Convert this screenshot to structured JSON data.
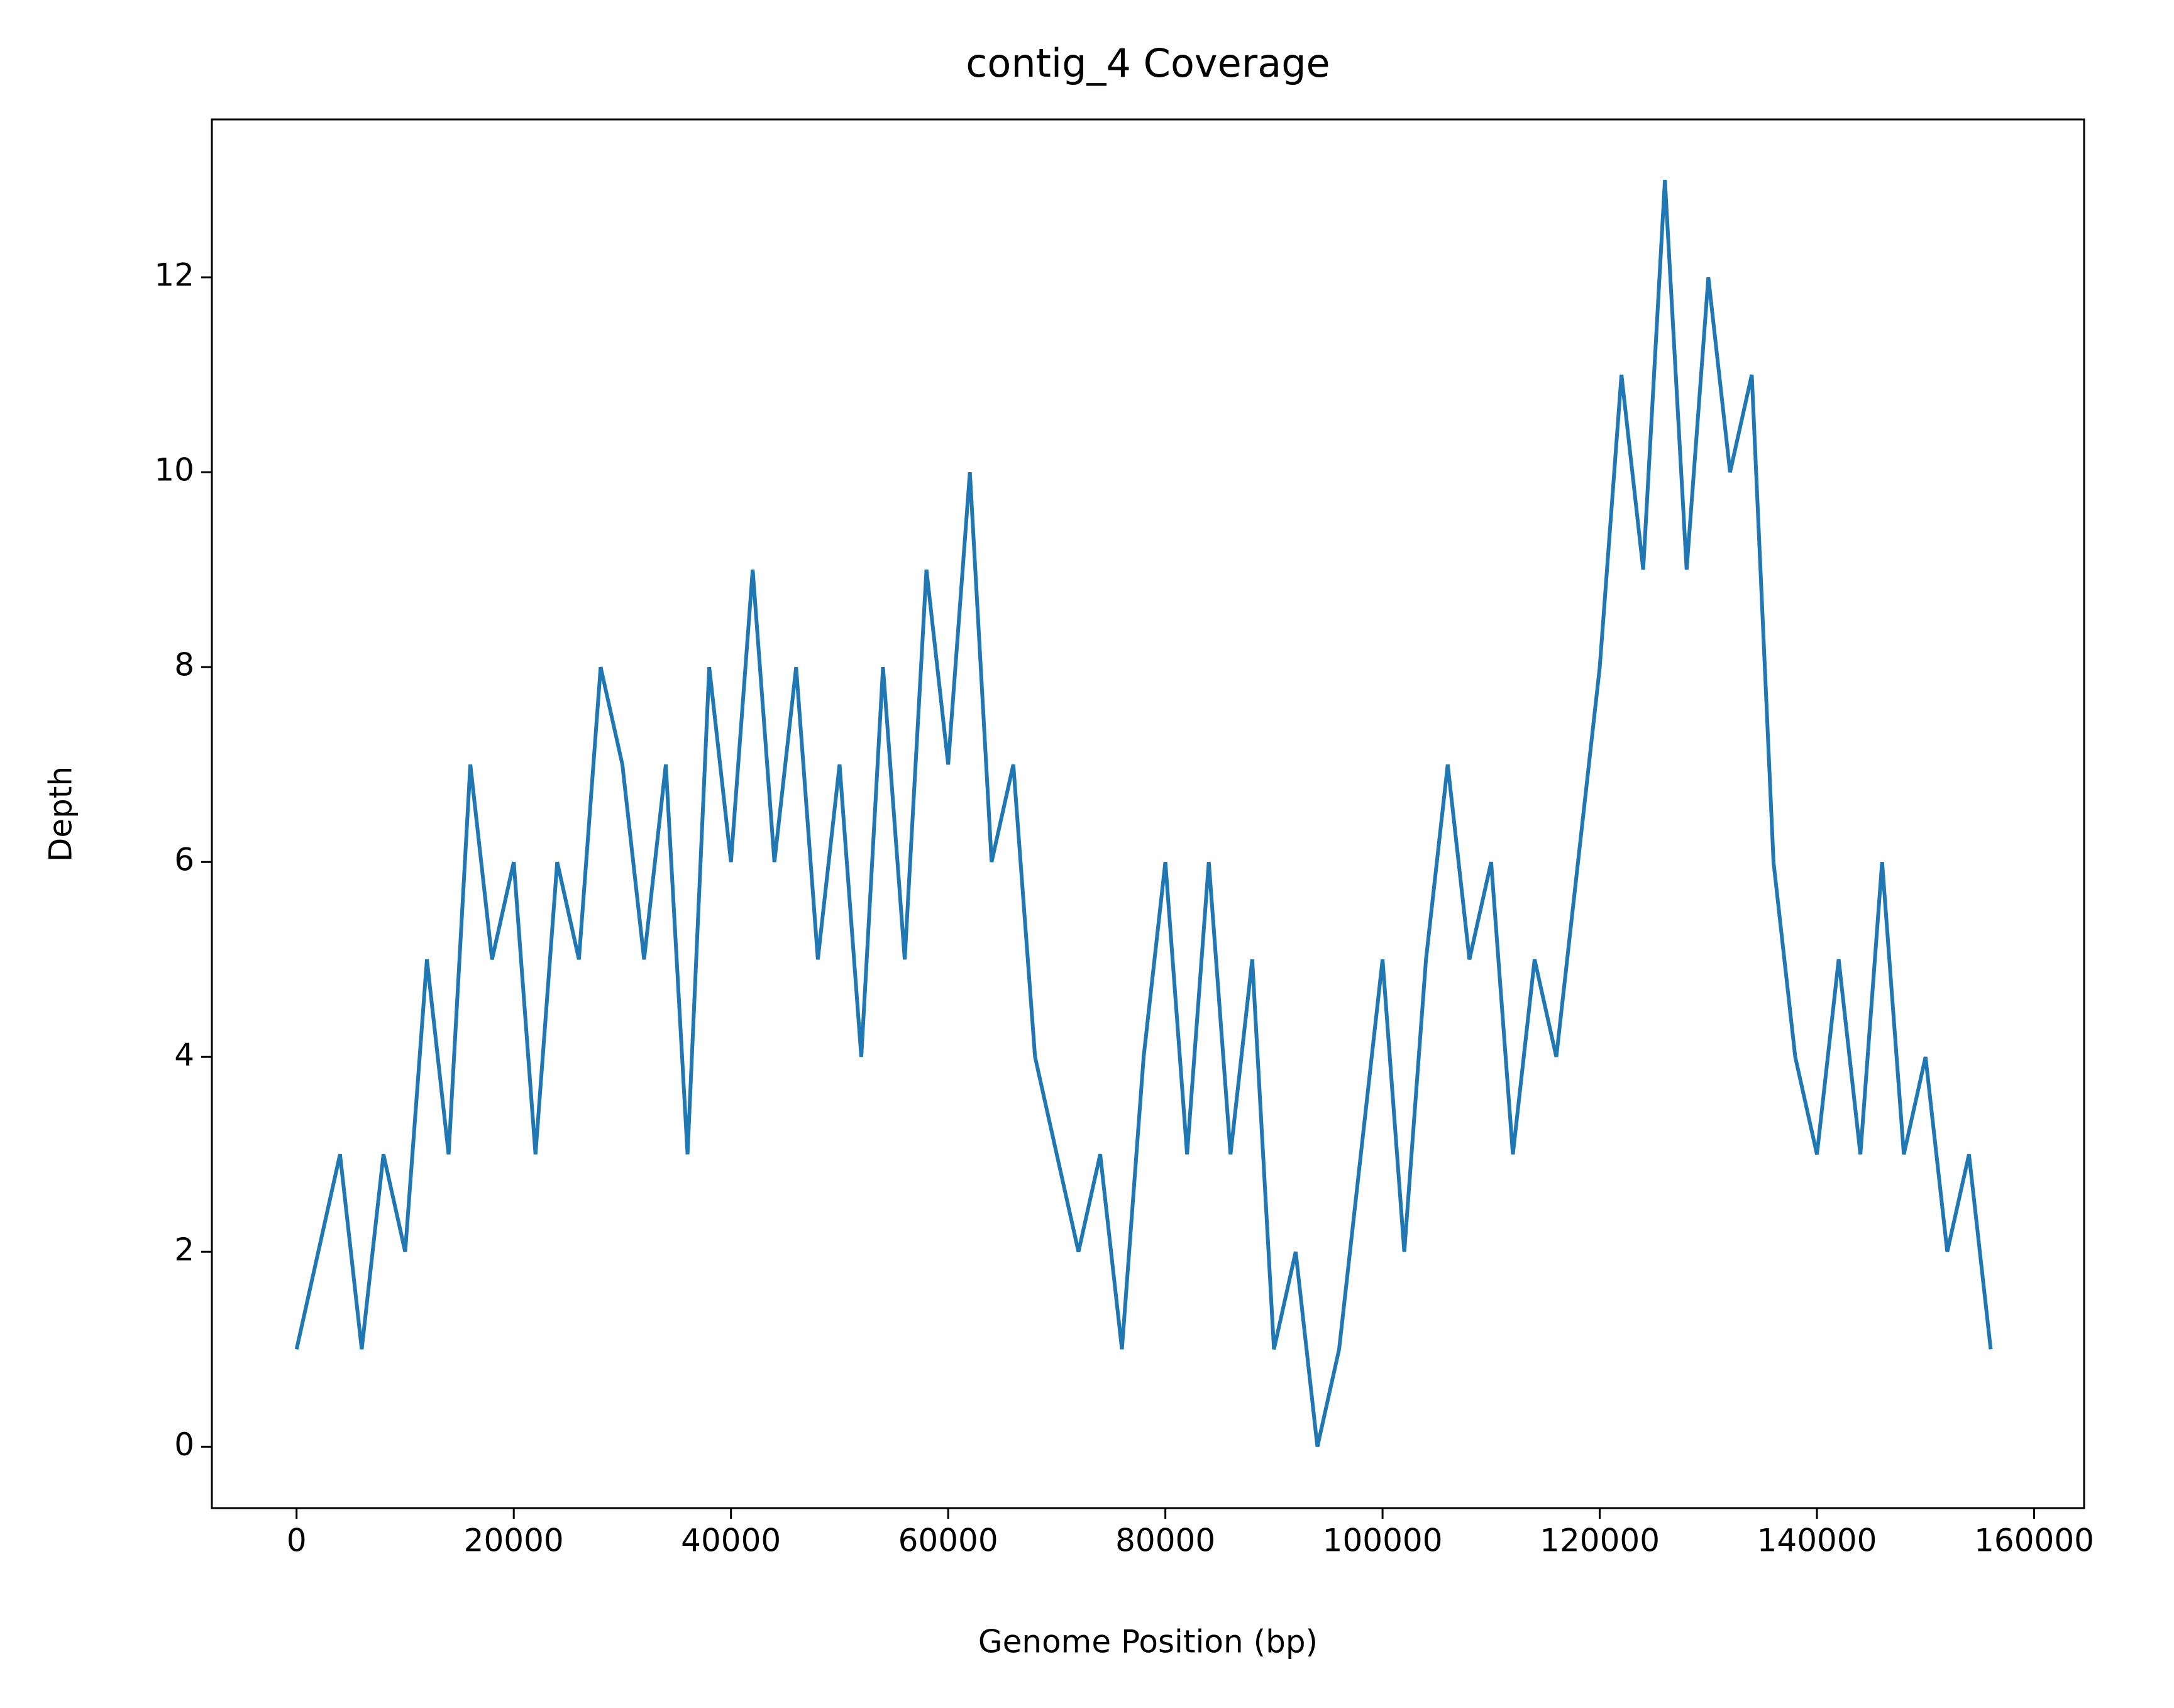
{
  "chart_data": {
    "type": "line",
    "title": "contig_4 Coverage",
    "xlabel": "Genome Position (bp)",
    "ylabel": "Depth",
    "x": [
      0,
      2000,
      4000,
      6000,
      8000,
      10000,
      12000,
      14000,
      16000,
      18000,
      20000,
      22000,
      24000,
      26000,
      28000,
      30000,
      32000,
      34000,
      36000,
      38000,
      40000,
      42000,
      44000,
      46000,
      48000,
      50000,
      52000,
      54000,
      56000,
      58000,
      60000,
      62000,
      64000,
      66000,
      68000,
      70000,
      72000,
      74000,
      76000,
      78000,
      80000,
      82000,
      84000,
      86000,
      88000,
      90000,
      92000,
      94000,
      96000,
      98000,
      100000,
      102000,
      104000,
      106000,
      108000,
      110000,
      112000,
      114000,
      116000,
      118000,
      120000,
      122000,
      124000,
      126000,
      128000,
      130000,
      132000,
      134000,
      136000,
      138000,
      140000,
      142000,
      144000,
      146000,
      148000,
      150000,
      152000,
      154000,
      156000
    ],
    "values": [
      1,
      2,
      3,
      1,
      3,
      2,
      5,
      3,
      7,
      5,
      6,
      3,
      6,
      5,
      8,
      7,
      5,
      7,
      3,
      8,
      6,
      9,
      6,
      8,
      5,
      7,
      4,
      8,
      5,
      9,
      7,
      10,
      6,
      7,
      4,
      3,
      2,
      3,
      1,
      4,
      6,
      3,
      6,
      3,
      5,
      1,
      2,
      0,
      1,
      3,
      5,
      2,
      5,
      7,
      5,
      6,
      3,
      5,
      4,
      6,
      8,
      11,
      9,
      13,
      9,
      12,
      10,
      11,
      6,
      4,
      3,
      5,
      3,
      6,
      3,
      4,
      2,
      3,
      1
    ],
    "color": "#1f77b4",
    "xlim": [
      -7800,
      164600
    ],
    "ylim": [
      -0.63,
      13.62
    ],
    "xticks": [
      0,
      20000,
      40000,
      60000,
      80000,
      100000,
      120000,
      140000,
      160000
    ],
    "yticks": [
      0,
      2,
      4,
      6,
      8,
      10,
      12
    ]
  }
}
